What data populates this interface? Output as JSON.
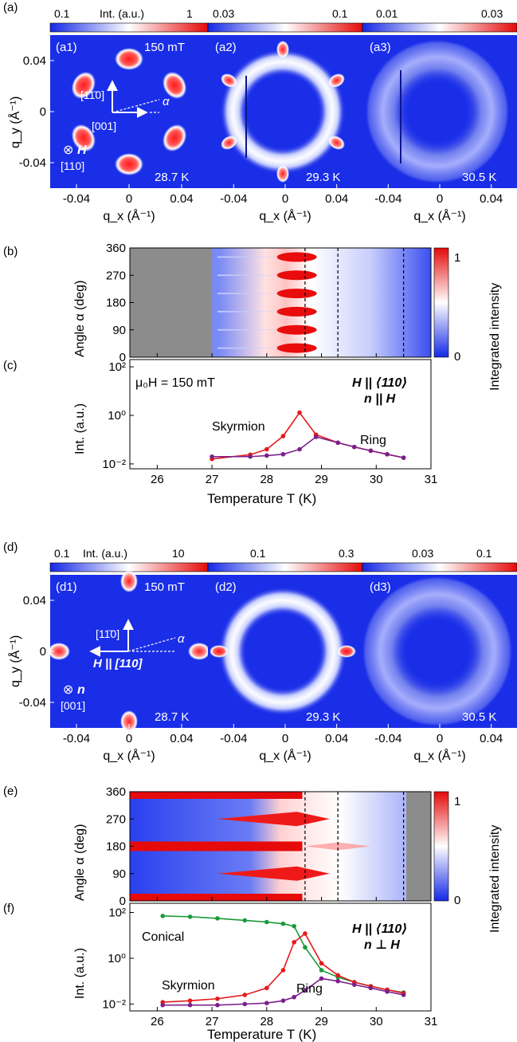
{
  "panels": {
    "a": {
      "letter": "(a)",
      "colorbars": [
        {
          "left": "0.1",
          "label": "Int. (a.u.)",
          "right": "1"
        },
        {
          "left": "0.03",
          "right": "0.1"
        },
        {
          "left": "0.01",
          "right": "0.03"
        }
      ],
      "subpanels": [
        {
          "tag": "(a1)",
          "field": "150 mT",
          "temp": "28.7 K"
        },
        {
          "tag": "(a2)",
          "temp": "29.3 K"
        },
        {
          "tag": "(a3)",
          "temp": "30.5 K"
        }
      ],
      "inset": {
        "dir_up": "[11̄0]",
        "dir_right": "[001]",
        "alpha": "α",
        "normal_symbol": "⊗",
        "normal_vec": "H",
        "normal_dir": "[110]"
      },
      "spots": [
        30,
        90,
        150,
        210,
        270,
        330
      ]
    },
    "d": {
      "letter": "(d)",
      "colorbars": [
        {
          "left": "0.1",
          "label": "Int. (a.u.)",
          "right": "10"
        },
        {
          "left": "0.1",
          "right": "0.3"
        },
        {
          "left": "0.03",
          "right": "0.1"
        }
      ],
      "subpanels": [
        {
          "tag": "(d1)",
          "field": "150 mT",
          "temp": "28.7 K"
        },
        {
          "tag": "(d2)",
          "temp": "29.3 K"
        },
        {
          "tag": "(d3)",
          "temp": "30.5 K"
        }
      ],
      "inset": {
        "dir_up": "[11̄0]",
        "h_label": "H || [110]",
        "alpha": "α",
        "normal_symbol": "⊗",
        "normal_vec": "n",
        "normal_dir": "[001]"
      },
      "spots": [
        0,
        90,
        180,
        270
      ]
    }
  },
  "axes": {
    "qx_label": "q_x (Å⁻¹)",
    "qy_label": "q_y (Å⁻¹)",
    "q_ticks": [
      "-0.04",
      "0",
      "0.04"
    ],
    "q_tick_values": [
      -0.04,
      0,
      0.04
    ],
    "q_range": [
      -0.06,
      0.06
    ]
  },
  "angle_maps": {
    "b": {
      "letter": "(b)",
      "ylabel": "Angle α (deg)",
      "yticks": [
        0,
        90,
        180,
        270,
        360
      ],
      "cb_label": "Integrated intensity",
      "cb_max": "1",
      "cb_min": "0",
      "no_data_T": [
        25.5,
        27.0
      ],
      "vlines_T": [
        28.7,
        29.3,
        30.5
      ],
      "skyrmion_angles": [
        30,
        90,
        150,
        210,
        270,
        330
      ]
    },
    "e": {
      "letter": "(e)",
      "ylabel": "Angle α (deg)",
      "yticks": [
        0,
        90,
        180,
        270,
        360
      ],
      "cb_label": "Integrated intensity",
      "cb_max": "1",
      "cb_min": "0",
      "no_data_T": [
        30.55,
        31.0
      ],
      "vlines_T": [
        28.7,
        29.3,
        30.5
      ],
      "conical_angles": [
        0,
        180,
        360
      ],
      "skyrmion_angles": [
        90,
        270
      ]
    }
  },
  "chart_data": [
    {
      "type": "line",
      "panel": "(c)",
      "xlabel": "Temperature T (K)",
      "ylabel": "Int. (a.u.)",
      "xlim": [
        25.5,
        31.0
      ],
      "ylim_log10": [
        -2.2,
        2.3
      ],
      "yscale": "log",
      "xticks": [
        26,
        27,
        28,
        29,
        30,
        31
      ],
      "ytick_labels": [
        "10⁻²",
        "10⁰",
        "10²"
      ],
      "ytick_values": [
        0.01,
        1,
        100
      ],
      "annotations": {
        "field": "μ₀H = 150 mT",
        "geom1": "H || ⟨110⟩",
        "geom2": "n || H"
      },
      "series": [
        {
          "name": "Skyrmion",
          "color": "#e41a1c",
          "x": [
            27.0,
            27.7,
            28.0,
            28.3,
            28.6,
            28.9,
            29.3,
            29.6,
            29.9,
            30.2,
            30.5
          ],
          "y": [
            0.016,
            0.024,
            0.04,
            0.14,
            1.3,
            0.16,
            0.075,
            0.05,
            0.035,
            0.025,
            0.018
          ]
        },
        {
          "name": "Ring",
          "color": "#7b1f8c",
          "x": [
            27.0,
            27.7,
            28.0,
            28.3,
            28.6,
            28.9,
            29.3,
            29.6,
            29.9,
            30.2,
            30.5
          ],
          "y": [
            0.02,
            0.02,
            0.022,
            0.025,
            0.04,
            0.13,
            0.075,
            0.05,
            0.035,
            0.025,
            0.018
          ]
        }
      ]
    },
    {
      "type": "line",
      "panel": "(f)",
      "xlabel": "Temperature T (K)",
      "ylabel": "Int. (a.u.)",
      "xlim": [
        25.5,
        31.0
      ],
      "ylim_log10": [
        -2.3,
        2.4
      ],
      "yscale": "log",
      "xticks": [
        26,
        27,
        28,
        29,
        30,
        31
      ],
      "ytick_labels": [
        "10⁻²",
        "10⁰",
        "10²"
      ],
      "ytick_values": [
        0.01,
        1,
        100
      ],
      "annotations": {
        "geom1": "H || ⟨110⟩",
        "geom2": "n ⊥ H"
      },
      "series": [
        {
          "name": "Conical",
          "color": "#1a9a3a",
          "x": [
            26.1,
            26.6,
            27.1,
            27.6,
            28.0,
            28.3,
            28.5,
            28.7,
            29.0,
            29.3,
            29.6,
            29.9,
            30.2,
            30.5
          ],
          "y": [
            70,
            65,
            55,
            45,
            38,
            32,
            25,
            3.0,
            0.3,
            0.15,
            0.09,
            0.06,
            0.042,
            0.032
          ]
        },
        {
          "name": "Skyrmion",
          "color": "#e41a1c",
          "x": [
            26.1,
            26.6,
            27.1,
            27.6,
            28.0,
            28.3,
            28.5,
            28.7,
            29.0,
            29.3,
            29.6,
            29.9,
            30.2,
            30.5
          ],
          "y": [
            0.012,
            0.014,
            0.017,
            0.025,
            0.05,
            0.3,
            5,
            12,
            0.6,
            0.18,
            0.09,
            0.06,
            0.042,
            0.03
          ]
        },
        {
          "name": "Ring",
          "color": "#7b1f8c",
          "x": [
            26.1,
            26.6,
            27.1,
            27.6,
            28.0,
            28.3,
            28.5,
            28.7,
            29.0,
            29.3,
            29.6,
            29.9,
            30.2,
            30.5
          ],
          "y": [
            0.009,
            0.009,
            0.009,
            0.01,
            0.011,
            0.014,
            0.02,
            0.04,
            0.13,
            0.1,
            0.07,
            0.05,
            0.035,
            0.025
          ]
        }
      ]
    }
  ]
}
